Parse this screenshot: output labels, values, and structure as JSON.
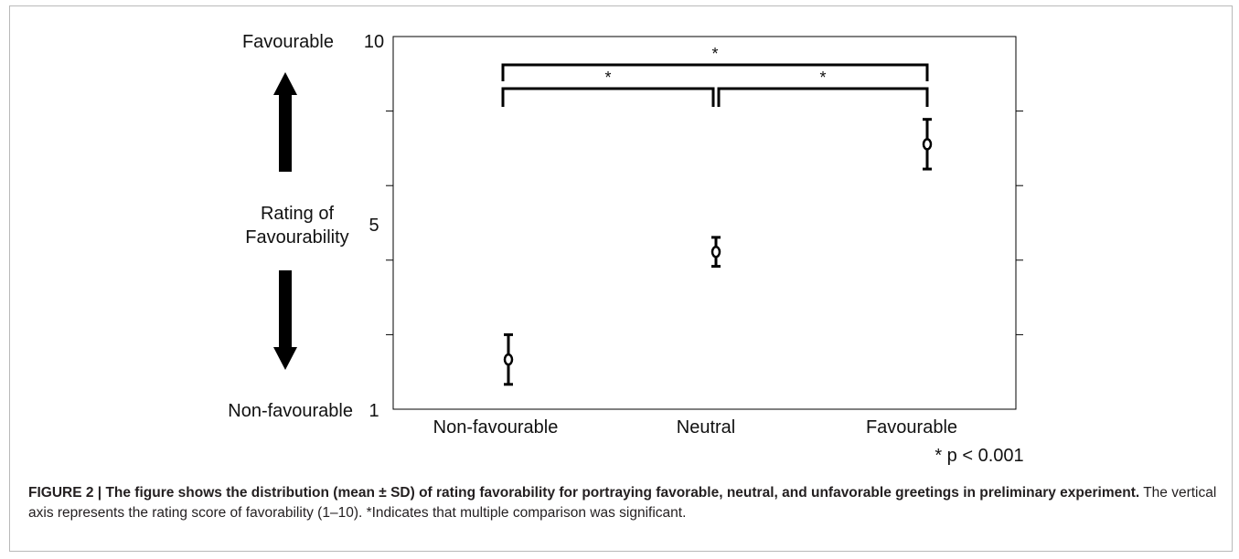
{
  "chart_data": {
    "type": "scatter",
    "categories": [
      "Non-favourable",
      "Neutral",
      "Favourable"
    ],
    "series": [
      {
        "values": [
          2.2,
          4.8,
          7.4
        ],
        "sd": [
          0.6,
          0.35,
          0.6
        ]
      }
    ],
    "ylim": [
      1,
      10
    ],
    "yticks_labeled": [
      "10",
      "5",
      "1"
    ],
    "y_scale_labels": {
      "top": "Favourable",
      "middle_line1": "Rating of",
      "middle_line2": "Favourability",
      "bottom": "Non-favourable"
    },
    "significance": [
      {
        "from": "Non-favourable",
        "to": "Favourable",
        "label": "*"
      },
      {
        "from": "Non-favourable",
        "to": "Neutral",
        "label": "*"
      },
      {
        "from": "Neutral",
        "to": "Favourable",
        "label": "*"
      }
    ],
    "note": "* p < 0.001",
    "grid": false,
    "colors": {
      "marks": "#000000",
      "text": "#111111"
    }
  },
  "caption": {
    "label": "FIGURE 2 | ",
    "bold_text": "The figure shows the distribution (mean ± SD) of rating favorability for portraying favorable, neutral, and unfavorable greetings in preliminary experiment.",
    "text": " The vertical axis represents the rating score of favorability (1–10). *Indicates that multiple comparison was significant."
  }
}
